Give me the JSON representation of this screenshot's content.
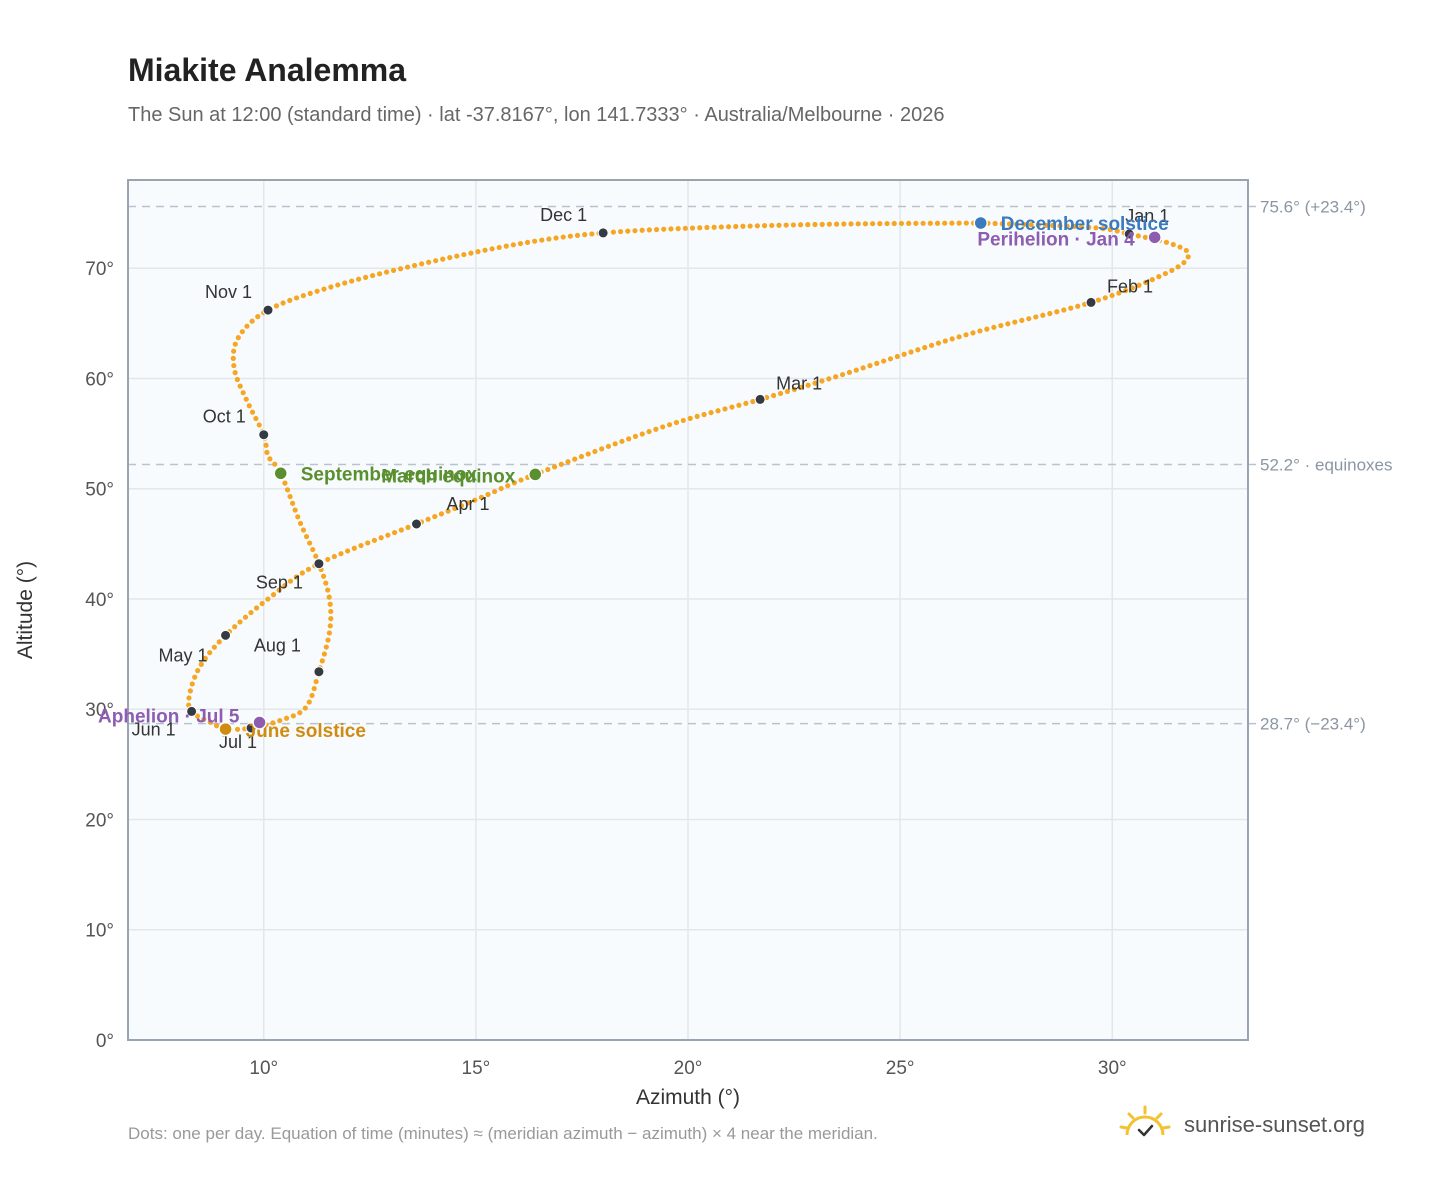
{
  "title": "Miakite Analemma",
  "subtitle": "The Sun at 12:00 (standard time) · lat -37.8167°, lon 141.7333° · Australia/Melbourne · 2026",
  "footnote": "Dots: one per day. Equation of time (minutes) ≈ (meridian azimuth − azimuth) × 4 near the meridian.",
  "brand": {
    "name": "sunrise-sunset.org",
    "icon": "sun-logo-icon"
  },
  "colors": {
    "curve": "#f5a623",
    "month_marker": "#333a44",
    "equinox": "#5a8f2e",
    "june_solstice": "#d08c10",
    "december_solstice": "#3a7abf",
    "apsis": "#8c5db0",
    "reference_line": "#b8c3cf",
    "plot_background": "#f8fbfd",
    "grid": "#e2e7ec"
  },
  "chart_data": {
    "type": "scatter",
    "xlabel": "Azimuth (°)",
    "ylabel": "Altitude (°)",
    "xlim": [
      6.8,
      33.2
    ],
    "ylim": [
      0,
      78
    ],
    "xticks": [
      10,
      15,
      20,
      25,
      30
    ],
    "yticks": [
      0,
      10,
      20,
      30,
      40,
      50,
      60,
      70
    ],
    "tick_suffix": "°",
    "grid": true,
    "reference_lines": [
      {
        "y": 75.6,
        "label": "75.6° (+23.4°)"
      },
      {
        "y": 52.2,
        "label": "52.2° · equinoxes"
      },
      {
        "y": 28.7,
        "label": "28.7° (−23.4°)"
      }
    ],
    "month_markers": [
      {
        "label": "Jan 1",
        "x": 30.4,
        "y": 73.1
      },
      {
        "label": "Feb 1",
        "x": 29.5,
        "y": 66.9
      },
      {
        "label": "Mar 1",
        "x": 21.7,
        "y": 58.1
      },
      {
        "label": "Apr 1",
        "x": 13.6,
        "y": 46.8
      },
      {
        "label": "May 1",
        "x": 9.1,
        "y": 36.7
      },
      {
        "label": "Jun 1",
        "x": 8.3,
        "y": 29.8
      },
      {
        "label": "Jul 1",
        "x": 9.7,
        "y": 28.3
      },
      {
        "label": "Aug 1",
        "x": 11.3,
        "y": 33.4
      },
      {
        "label": "Sep 1",
        "x": 11.3,
        "y": 43.2
      },
      {
        "label": "Oct 1",
        "x": 10.0,
        "y": 54.9
      },
      {
        "label": "Nov 1",
        "x": 10.1,
        "y": 66.2
      },
      {
        "label": "Dec 1",
        "x": 18.0,
        "y": 73.2
      }
    ],
    "events": [
      {
        "label": "December solstice",
        "x": 26.9,
        "y": 74.1,
        "kind": "december_solstice"
      },
      {
        "label": "Perihelion · Jan 4",
        "x": 31.0,
        "y": 72.8,
        "kind": "apsis"
      },
      {
        "label": "March equinox",
        "x": 16.4,
        "y": 51.3,
        "kind": "equinox"
      },
      {
        "label": "September equinox",
        "x": 10.4,
        "y": 51.4,
        "kind": "equinox"
      },
      {
        "label": "June solstice",
        "x": 9.1,
        "y": 28.2,
        "kind": "june_solstice"
      },
      {
        "label": "Aphelion · Jul 5",
        "x": 9.9,
        "y": 28.8,
        "kind": "apsis"
      }
    ],
    "daily_path": [
      [
        26.9,
        74.1
      ],
      [
        29.5,
        73.7
      ],
      [
        30.4,
        73.1
      ],
      [
        31.4,
        72.2
      ],
      [
        31.8,
        71.2
      ],
      [
        31.3,
        69.6
      ],
      [
        29.5,
        66.9
      ],
      [
        26.5,
        63.9
      ],
      [
        23.6,
        60.3
      ],
      [
        21.7,
        58.1
      ],
      [
        19.4,
        55.6
      ],
      [
        16.4,
        51.3
      ],
      [
        15.0,
        49.0
      ],
      [
        13.6,
        46.8
      ],
      [
        11.3,
        43.2
      ],
      [
        10.1,
        40.0
      ],
      [
        9.1,
        36.7
      ],
      [
        8.5,
        33.9
      ],
      [
        8.25,
        31.3
      ],
      [
        8.3,
        29.8
      ],
      [
        8.8,
        28.7
      ],
      [
        9.1,
        28.2
      ],
      [
        9.7,
        28.3
      ],
      [
        10.4,
        29.0
      ],
      [
        11.0,
        30.2
      ],
      [
        11.3,
        33.4
      ],
      [
        11.55,
        37.0
      ],
      [
        11.55,
        40.0
      ],
      [
        11.3,
        43.2
      ],
      [
        10.85,
        47.0
      ],
      [
        10.4,
        51.4
      ],
      [
        10.1,
        53.0
      ],
      [
        10.0,
        54.9
      ],
      [
        9.6,
        58.0
      ],
      [
        9.3,
        61.0
      ],
      [
        9.4,
        63.7
      ],
      [
        10.1,
        66.2
      ],
      [
        11.5,
        68.2
      ],
      [
        13.5,
        70.2
      ],
      [
        16.0,
        72.2
      ],
      [
        18.0,
        73.2
      ],
      [
        20.5,
        73.7
      ],
      [
        23.5,
        74.0
      ],
      [
        26.9,
        74.1
      ]
    ]
  }
}
